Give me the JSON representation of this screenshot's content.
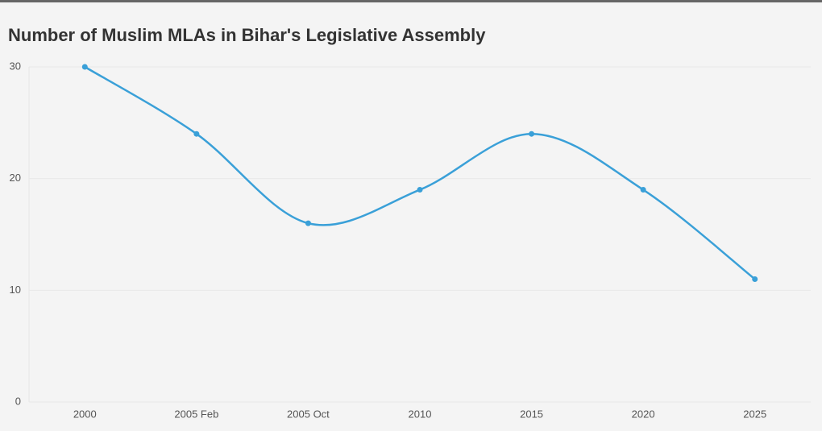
{
  "chart_data": {
    "type": "line",
    "title": "Number of Muslim MLAs in Bihar's Legislative Assembly",
    "categories": [
      "2000",
      "2005 Feb",
      "2005 Oct",
      "2010",
      "2015",
      "2020",
      "2025"
    ],
    "values": [
      30,
      24,
      16,
      19,
      24,
      19,
      11
    ],
    "color": "#3aa0d8",
    "ylim": [
      0,
      30
    ],
    "yticks": [
      0,
      10,
      20,
      30
    ],
    "grid": true
  }
}
